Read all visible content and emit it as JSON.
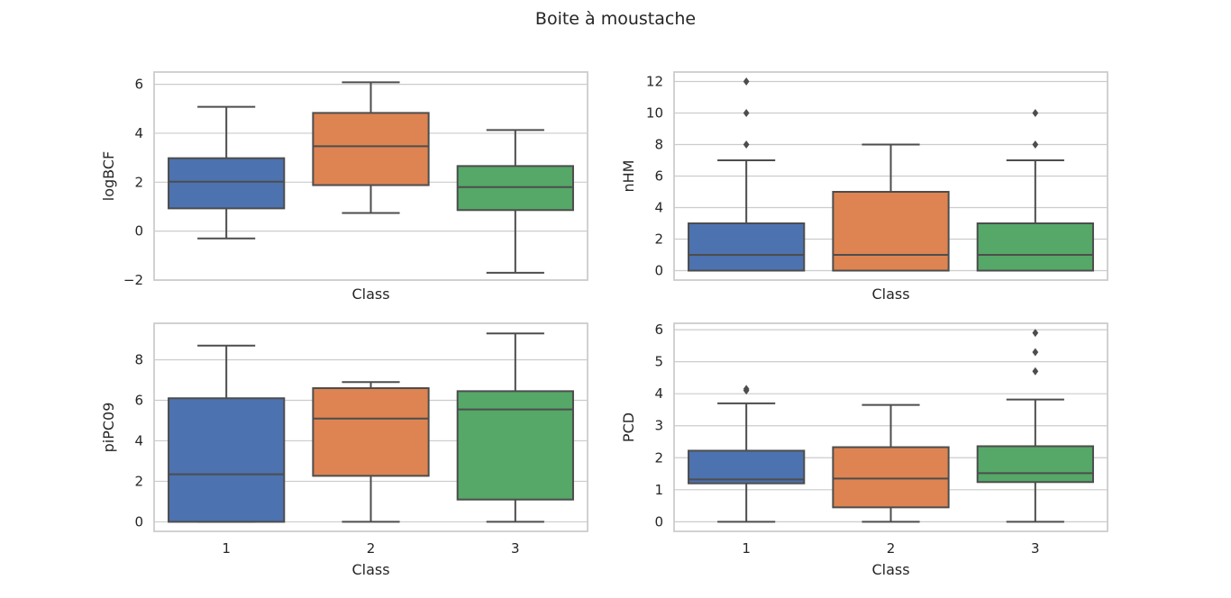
{
  "figure": {
    "title": "Boite à moustache"
  },
  "colors": {
    "class_1": "#4c72b0",
    "class_2": "#dd8452",
    "class_3": "#55a868",
    "line": "#4d4d4d",
    "grid": "#cccccc",
    "spine": "#cccccc"
  },
  "chart_data": [
    {
      "type": "box",
      "xlabel": "Class",
      "ylabel": "logBCF",
      "ylim": [
        -2.0,
        6.5
      ],
      "yticks": [
        -2,
        0,
        2,
        4,
        6
      ],
      "ytick_labels": [
        "−2",
        "0",
        "2",
        "4",
        "6"
      ],
      "xtick_labels": [],
      "categories": [
        "1",
        "2",
        "3"
      ],
      "grid": true,
      "boxes": [
        {
          "category": "1",
          "whisker_low": -0.3,
          "q1": 0.93,
          "median": 2.02,
          "q3": 2.98,
          "whisker_high": 5.08,
          "outliers": []
        },
        {
          "category": "2",
          "whisker_low": 0.74,
          "q1": 1.88,
          "median": 3.47,
          "q3": 4.83,
          "whisker_high": 6.08,
          "outliers": []
        },
        {
          "category": "3",
          "whisker_low": -1.7,
          "q1": 0.86,
          "median": 1.8,
          "q3": 2.66,
          "whisker_high": 4.13,
          "outliers": []
        }
      ]
    },
    {
      "type": "box",
      "xlabel": "Class",
      "ylabel": "nHM",
      "ylim": [
        -0.6,
        12.6
      ],
      "yticks": [
        0,
        2,
        4,
        6,
        8,
        10,
        12
      ],
      "ytick_labels": [
        "0",
        "2",
        "4",
        "6",
        "8",
        "10",
        "12"
      ],
      "xtick_labels": [],
      "categories": [
        "1",
        "2",
        "3"
      ],
      "grid": true,
      "boxes": [
        {
          "category": "1",
          "whisker_low": 0,
          "q1": 0,
          "median": 1,
          "q3": 3,
          "whisker_high": 7,
          "outliers": [
            8,
            10,
            12
          ]
        },
        {
          "category": "2",
          "whisker_low": 0,
          "q1": 0,
          "median": 1,
          "q3": 5,
          "whisker_high": 8,
          "outliers": []
        },
        {
          "category": "3",
          "whisker_low": 0,
          "q1": 0,
          "median": 1,
          "q3": 3,
          "whisker_high": 7,
          "outliers": [
            8,
            10
          ]
        }
      ]
    },
    {
      "type": "box",
      "xlabel": "Class",
      "ylabel": "piPC09",
      "ylim": [
        -0.47,
        9.8
      ],
      "yticks": [
        0,
        2,
        4,
        6,
        8
      ],
      "ytick_labels": [
        "0",
        "2",
        "4",
        "6",
        "8"
      ],
      "xtick_labels": [
        "1",
        "2",
        "3"
      ],
      "categories": [
        "1",
        "2",
        "3"
      ],
      "grid": true,
      "boxes": [
        {
          "category": "1",
          "whisker_low": 0,
          "q1": 0,
          "median": 2.35,
          "q3": 6.1,
          "whisker_high": 8.7,
          "outliers": []
        },
        {
          "category": "2",
          "whisker_low": 0,
          "q1": 2.27,
          "median": 5.1,
          "q3": 6.6,
          "whisker_high": 6.9,
          "outliers": []
        },
        {
          "category": "3",
          "whisker_low": 0,
          "q1": 1.1,
          "median": 5.55,
          "q3": 6.45,
          "whisker_high": 9.3,
          "outliers": []
        }
      ]
    },
    {
      "type": "box",
      "xlabel": "Class",
      "ylabel": "PCD",
      "ylim": [
        -0.3,
        6.2
      ],
      "yticks": [
        0,
        1,
        2,
        3,
        4,
        5,
        6
      ],
      "ytick_labels": [
        "0",
        "1",
        "2",
        "3",
        "4",
        "5",
        "6"
      ],
      "xtick_labels": [
        "1",
        "2",
        "3"
      ],
      "categories": [
        "1",
        "2",
        "3"
      ],
      "grid": true,
      "boxes": [
        {
          "category": "1",
          "whisker_low": 0,
          "q1": 1.2,
          "median": 1.32,
          "q3": 2.22,
          "whisker_high": 3.7,
          "outliers": [
            4.1,
            4.15
          ]
        },
        {
          "category": "2",
          "whisker_low": 0,
          "q1": 0.45,
          "median": 1.35,
          "q3": 2.33,
          "whisker_high": 3.65,
          "outliers": []
        },
        {
          "category": "3",
          "whisker_low": 0,
          "q1": 1.24,
          "median": 1.52,
          "q3": 2.36,
          "whisker_high": 3.82,
          "outliers": [
            4.7,
            5.3,
            5.9
          ]
        }
      ]
    }
  ]
}
